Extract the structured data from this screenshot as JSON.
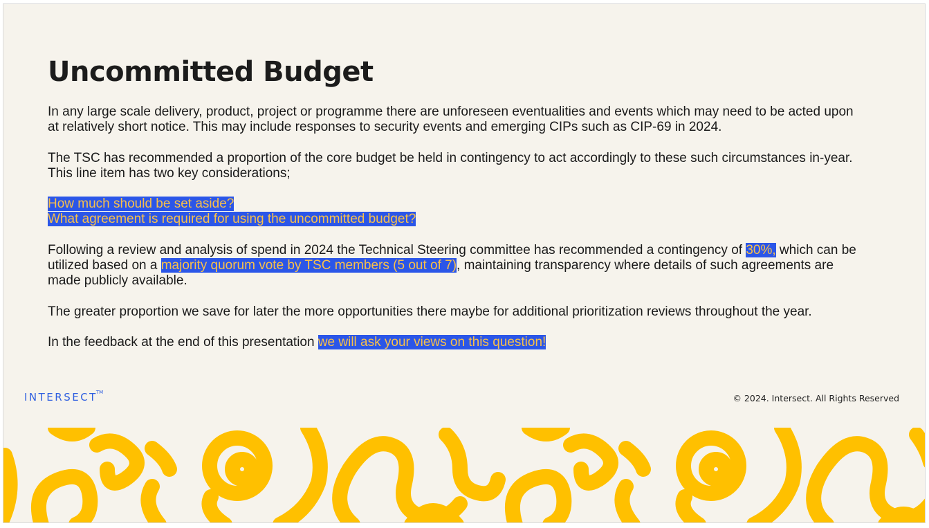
{
  "slide": {
    "title": "Uncommitted Budget",
    "paragraph_1": "In any large scale delivery, product, project or programme there are unforeseen eventualities and events which may need to be acted upon at relatively short notice. This may include responses to security events and emerging CIPs such as CIP-69 in 2024.",
    "paragraph_2": "The TSC has recommended a proportion of the core budget be held in contingency to act accordingly to these such circumstances in-year. This line item has two key considerations;",
    "question_1": "How much should be set aside?",
    "question_2": "What agreement is required for using the uncommitted budget?",
    "paragraph_4_part_1": "Following a review and analysis of spend in 2024 the Technical Steering committee has recommended a contingency of ",
    "paragraph_4_highlight_1": "30%,",
    "paragraph_4_part_2": " which can be utilized based on a ",
    "paragraph_4_highlight_2": "majority quorum vote by TSC members (5 out of 7)",
    "paragraph_4_part_3": ", maintaining transparency where details of such agreements are made publicly available.",
    "paragraph_5": "The greater proportion we save for later the more opportunities there maybe for additional prioritization reviews throughout the year.",
    "paragraph_6_part_1": "In the feedback at the end of this presentation ",
    "paragraph_6_highlight": "we will ask your views on this question!"
  },
  "footer": {
    "logo_text": "INTERSECT",
    "logo_tm": "TM",
    "copyright": "© 2024. Intersect. All Rights Reserved"
  },
  "colors": {
    "background": "#f6f3ec",
    "highlight_background": "#2b56e8",
    "highlight_text": "#f9c04a",
    "logo_blue": "#2f5fe0",
    "squiggle_yellow": "#ffc000"
  },
  "decoration": {
    "pattern_icon": "yellow-squiggle-pattern"
  }
}
